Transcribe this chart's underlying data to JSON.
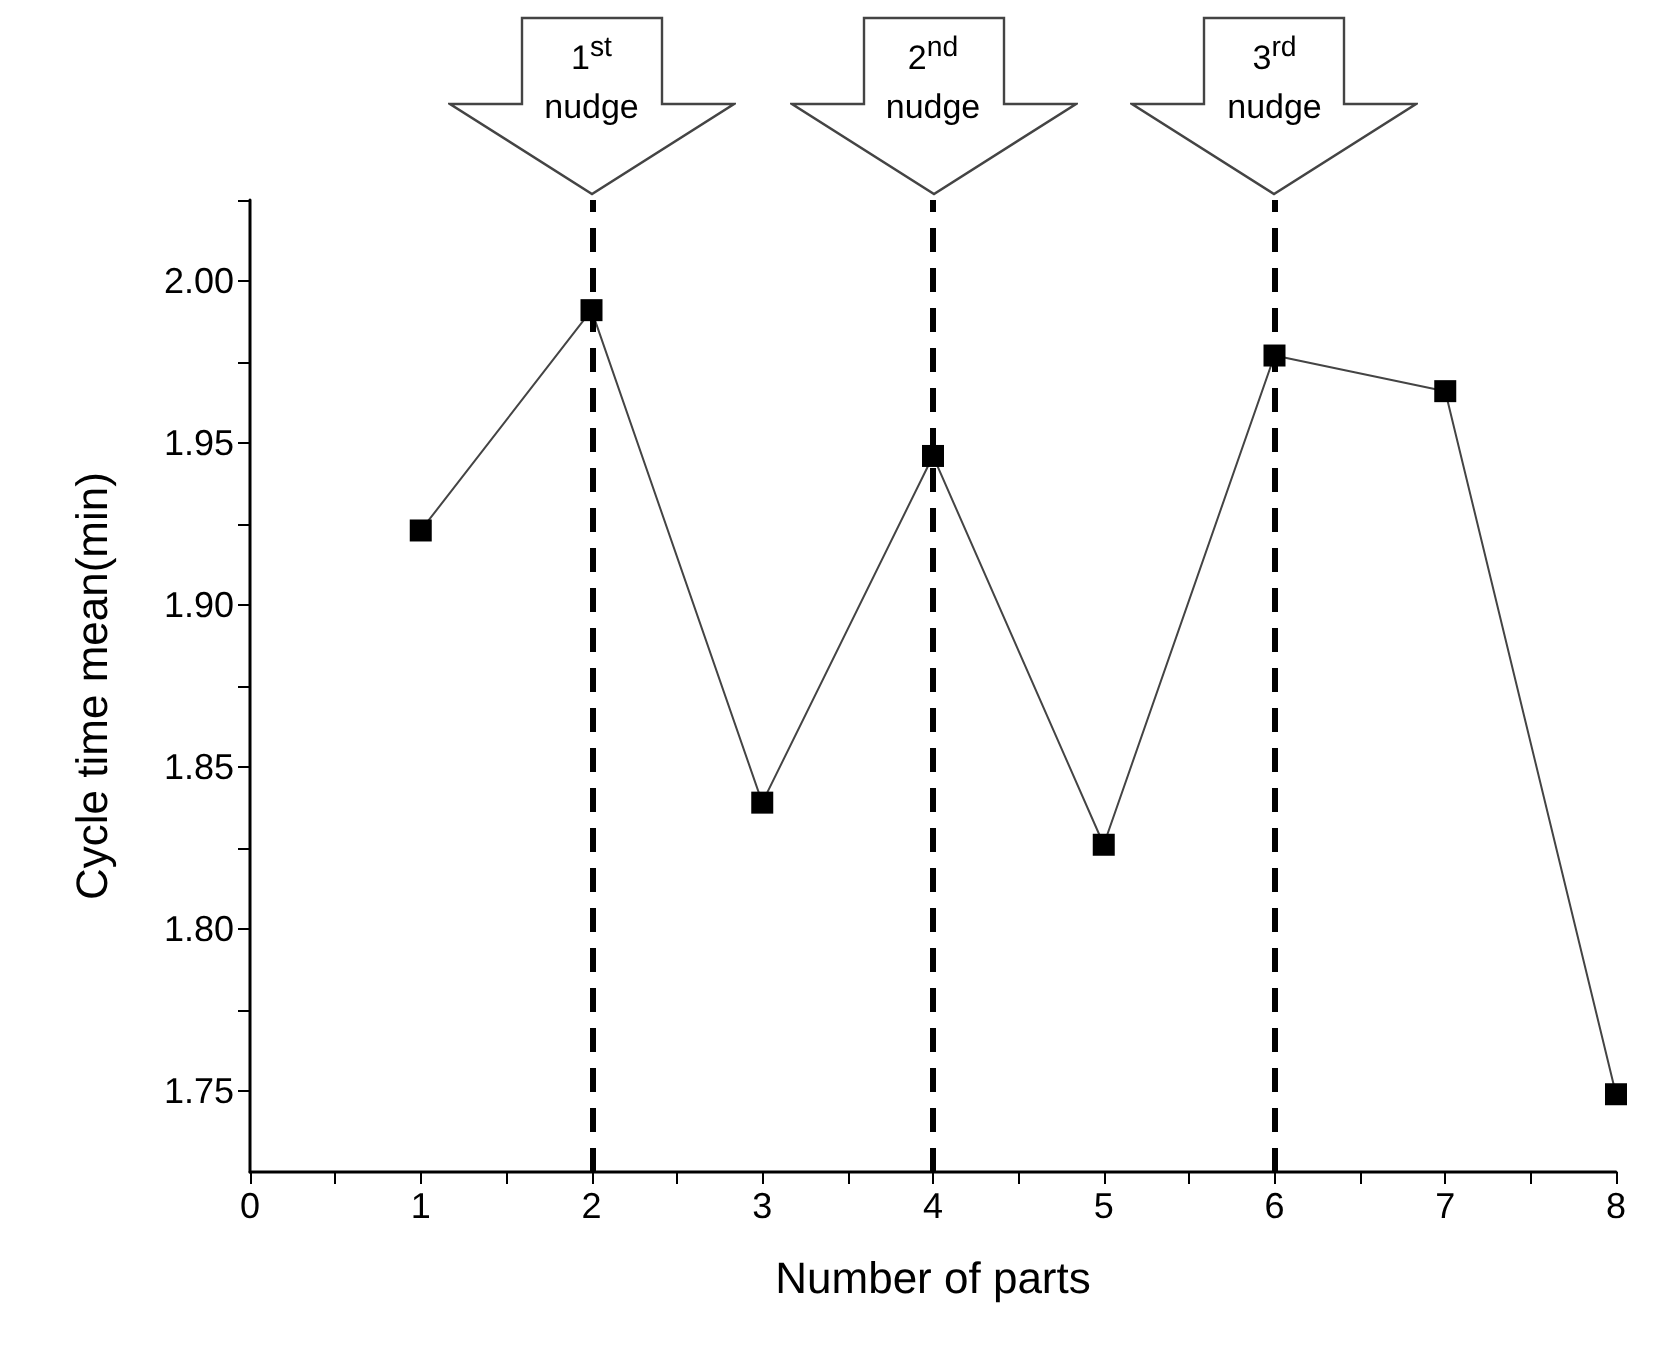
{
  "chart_data": {
    "type": "line",
    "xlabel": "Number of parts",
    "ylabel": "Cycle time mean(min)",
    "x": [
      1,
      2,
      3,
      4,
      5,
      6,
      7,
      8
    ],
    "series": [
      {
        "color": "#000000",
        "values": [
          1.923,
          1.991,
          1.839,
          1.946,
          1.826,
          1.977,
          1.966,
          1.749
        ]
      }
    ],
    "marker": "square",
    "line_style": "solid",
    "grid": false,
    "xlim": [
      0,
      8
    ],
    "xticks": [
      0,
      {
        "value": 0.5,
        "label": null
      },
      1,
      {
        "value": 1.5,
        "label": null
      },
      2,
      {
        "value": 2.5,
        "label": null
      },
      3,
      {
        "value": 3.5,
        "label": null
      },
      4,
      {
        "value": 4.5,
        "label": null
      },
      5,
      {
        "value": 5.5,
        "label": null
      },
      6,
      {
        "value": 6.5,
        "label": null
      },
      7,
      {
        "value": 7.5,
        "label": null
      },
      8
    ],
    "ylim": [
      1.725,
      2.025
    ],
    "yticks": [
      {
        "value": 1.75,
        "label": "1.75"
      },
      {
        "value": 1.775,
        "label": null
      },
      {
        "value": 1.8,
        "label": "1.80"
      },
      {
        "value": 1.825,
        "label": null
      },
      {
        "value": 1.85,
        "label": "1.85"
      },
      {
        "value": 1.875,
        "label": null
      },
      {
        "value": 1.9,
        "label": "1.90"
      },
      {
        "value": 1.925,
        "label": null
      },
      {
        "value": 1.95,
        "label": "1.95"
      },
      {
        "value": 1.975,
        "label": null
      },
      {
        "value": 2.0,
        "label": "2.00"
      },
      {
        "value": 2.025,
        "label": null
      }
    ],
    "ref_lines": [
      {
        "axis": "x",
        "value": 2,
        "label": "1$^{st}$ nudge",
        "color": "#000000",
        "line_style": "dashed"
      },
      {
        "axis": "x",
        "value": 4,
        "label": "2$^{nd}$ nudge",
        "color": "#000000",
        "line_style": "dashed"
      },
      {
        "axis": "x",
        "value": 6,
        "label": "3$^{rd}$ nudge",
        "color": "#000000",
        "line_style": "dashed"
      }
    ]
  }
}
